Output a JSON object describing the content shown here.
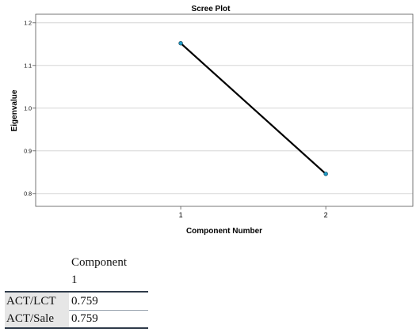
{
  "chart_data": {
    "type": "line",
    "title": "Scree Plot",
    "xlabel": "Component Number",
    "ylabel": "Eigenvalue",
    "x": [
      1,
      2
    ],
    "y": [
      1.152,
      0.846
    ],
    "xlim": [
      0,
      2.6
    ],
    "ylim": [
      0.77,
      1.22
    ],
    "xticks": [
      "1",
      "2"
    ],
    "yticks": [
      "0.8",
      "0.9",
      "1.0",
      "1.1",
      "1.2"
    ],
    "grid": true,
    "line_color": "#000000",
    "marker_color": "#1f9bc5"
  },
  "table": {
    "header_line1": "Component",
    "header_line2": "1",
    "rows": [
      {
        "label": "ACT/LCT",
        "value": "0.759"
      },
      {
        "label": "ACT/Sale",
        "value": "0.759"
      }
    ]
  }
}
